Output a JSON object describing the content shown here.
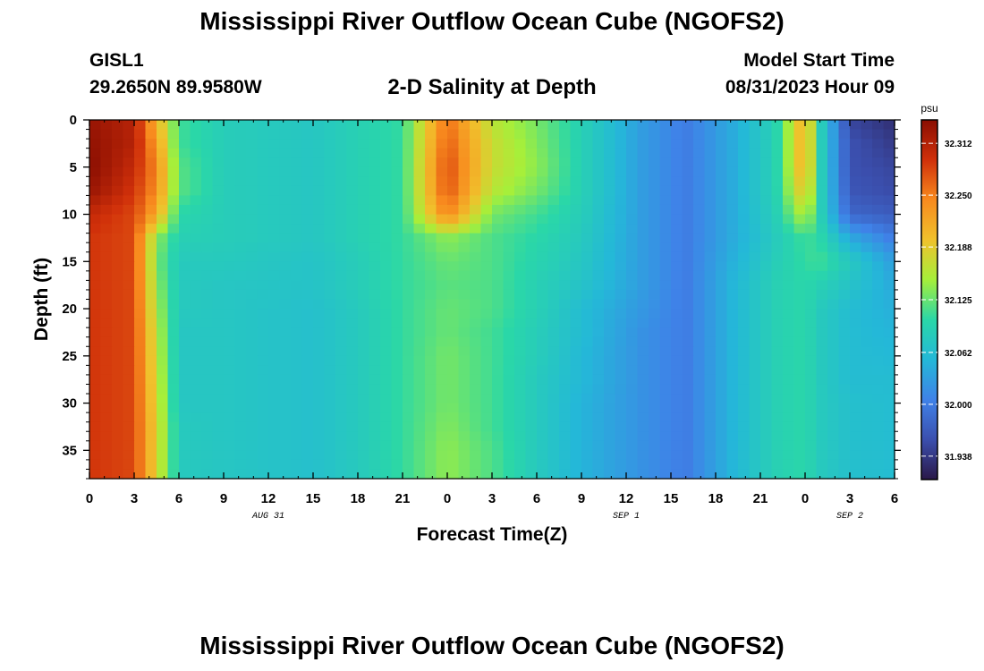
{
  "page": {
    "title": "Mississippi River Outflow Ocean Cube (NGOFS2)",
    "bottom_title": "Mississippi River Outflow Ocean Cube (NGOFS2)",
    "station": "GISL1",
    "coordinates": "29.2650N  89.9580W",
    "subtitle": "2-D Salinity at Depth",
    "model_start_label": "Model Start Time",
    "model_start_value": "08/31/2023 Hour 09"
  },
  "colors": {
    "scale": [
      "#2a1848",
      "#3b4fae",
      "#3f82e8",
      "#24b8d8",
      "#2ad7a8",
      "#a6ef3a",
      "#f0c12c",
      "#f88a1e",
      "#d0300a",
      "#8a0e02"
    ]
  },
  "chart_data": {
    "type": "heatmap",
    "xlabel": "Forecast Time(Z)",
    "ylabel": "Depth (ft)",
    "xlim": [
      0,
      54
    ],
    "ylim": [
      38,
      0
    ],
    "x_tick_values": [
      0,
      3,
      6,
      9,
      12,
      15,
      18,
      21,
      24,
      27,
      30,
      33,
      36,
      39,
      42,
      45,
      48,
      51,
      54
    ],
    "x_tick_labels": [
      "0",
      "3",
      "6",
      "9",
      "12",
      "15",
      "18",
      "21",
      "0",
      "3",
      "6",
      "9",
      "12",
      "15",
      "18",
      "21",
      "0",
      "3",
      "6"
    ],
    "date_labels": [
      {
        "x": 12,
        "text": "AUG 31"
      },
      {
        "x": 36,
        "text": "SEP 1"
      },
      {
        "x": 51,
        "text": "SEP 2"
      }
    ],
    "y_ticks": [
      0,
      5,
      10,
      15,
      20,
      25,
      30,
      35
    ],
    "colorbar": {
      "units": "psu",
      "min": 31.91,
      "max": 32.34,
      "tick_values": [
        32.312,
        32.25,
        32.188,
        32.125,
        32.062,
        32.0,
        31.938
      ],
      "tick_labels": [
        "32.312",
        "32.250",
        "32.188",
        "32.125",
        "32.062",
        "32.000",
        "31.938"
      ]
    },
    "times": [
      0,
      3,
      4.5,
      6,
      9,
      15,
      18,
      21,
      24,
      27,
      30,
      33,
      37,
      40,
      43,
      46,
      48,
      49,
      51,
      54
    ],
    "depths": [
      0,
      2.5,
      5,
      7.5,
      10,
      12.5,
      15,
      17.5,
      20,
      22.5,
      25,
      27.5,
      30,
      32.5,
      35,
      38
    ],
    "salinity": [
      [
        32.33,
        32.31,
        32.21,
        32.11,
        32.085,
        32.075,
        32.09,
        32.105,
        32.26,
        32.16,
        32.13,
        32.09,
        32.03,
        32.0,
        32.04,
        32.09,
        32.22,
        32.09,
        31.95,
        31.93
      ],
      [
        32.335,
        32.31,
        32.23,
        32.11,
        32.085,
        32.075,
        32.09,
        32.105,
        32.27,
        32.17,
        32.135,
        32.09,
        32.03,
        32.0,
        32.04,
        32.09,
        32.22,
        32.09,
        31.96,
        31.94
      ],
      [
        32.34,
        32.3,
        32.245,
        32.12,
        32.085,
        32.075,
        32.09,
        32.105,
        32.28,
        32.17,
        32.14,
        32.09,
        32.03,
        32.0,
        32.04,
        32.09,
        32.22,
        32.09,
        31.96,
        31.95
      ],
      [
        32.33,
        32.29,
        32.24,
        32.12,
        32.085,
        32.075,
        32.09,
        32.105,
        32.275,
        32.16,
        32.13,
        32.09,
        32.03,
        32.0,
        32.04,
        32.09,
        32.2,
        32.09,
        31.965,
        31.955
      ],
      [
        32.3,
        32.28,
        32.22,
        32.1,
        32.085,
        32.075,
        32.09,
        32.105,
        32.25,
        32.13,
        32.11,
        32.085,
        32.03,
        32.0,
        32.04,
        32.085,
        32.16,
        32.09,
        31.98,
        31.97
      ],
      [
        32.29,
        32.28,
        32.14,
        32.09,
        32.085,
        32.075,
        32.09,
        32.105,
        32.14,
        32.115,
        32.1,
        32.08,
        32.03,
        32.0,
        32.04,
        32.08,
        32.11,
        32.1,
        32.04,
        32.0
      ],
      [
        32.29,
        32.28,
        32.13,
        32.08,
        32.08,
        32.07,
        32.085,
        32.105,
        32.125,
        32.115,
        32.095,
        32.075,
        32.03,
        32.0,
        32.045,
        32.085,
        32.105,
        32.11,
        32.08,
        32.03
      ],
      [
        32.29,
        32.28,
        32.14,
        32.08,
        32.075,
        32.07,
        32.085,
        32.105,
        32.12,
        32.115,
        32.09,
        32.07,
        32.03,
        32.0,
        32.05,
        32.09,
        32.1,
        32.09,
        32.07,
        32.04
      ],
      [
        32.29,
        32.28,
        32.15,
        32.08,
        32.075,
        32.065,
        32.08,
        32.105,
        32.125,
        32.115,
        32.09,
        32.06,
        32.025,
        32.0,
        32.05,
        32.09,
        32.1,
        32.08,
        32.06,
        32.045
      ],
      [
        32.29,
        32.28,
        32.16,
        32.075,
        32.075,
        32.065,
        32.08,
        32.105,
        32.125,
        32.11,
        32.085,
        32.06,
        32.02,
        32.0,
        32.05,
        32.09,
        32.1,
        32.08,
        32.06,
        32.05
      ],
      [
        32.29,
        32.28,
        32.165,
        32.075,
        32.075,
        32.065,
        32.08,
        32.105,
        32.13,
        32.11,
        32.085,
        32.055,
        32.02,
        32.0,
        32.05,
        32.09,
        32.1,
        32.08,
        32.06,
        32.055
      ],
      [
        32.29,
        32.28,
        32.17,
        32.075,
        32.075,
        32.065,
        32.08,
        32.105,
        32.13,
        32.11,
        32.08,
        32.055,
        32.02,
        32.0,
        32.05,
        32.09,
        32.1,
        32.08,
        32.06,
        32.06
      ],
      [
        32.29,
        32.28,
        32.175,
        32.075,
        32.075,
        32.065,
        32.08,
        32.105,
        32.13,
        32.11,
        32.08,
        32.05,
        32.02,
        32.0,
        32.05,
        32.09,
        32.1,
        32.08,
        32.065,
        32.06
      ],
      [
        32.29,
        32.28,
        32.18,
        32.08,
        32.075,
        32.065,
        32.08,
        32.105,
        32.135,
        32.11,
        32.08,
        32.05,
        32.02,
        32.0,
        32.05,
        32.09,
        32.1,
        32.08,
        32.065,
        32.06
      ],
      [
        32.29,
        32.28,
        32.18,
        32.08,
        32.075,
        32.065,
        32.08,
        32.105,
        32.14,
        32.115,
        32.08,
        32.05,
        32.02,
        32.0,
        32.05,
        32.09,
        32.1,
        32.08,
        32.065,
        32.06
      ],
      [
        32.29,
        32.28,
        32.18,
        32.08,
        32.075,
        32.065,
        32.08,
        32.105,
        32.14,
        32.115,
        32.08,
        32.05,
        32.02,
        32.0,
        32.05,
        32.09,
        32.1,
        32.08,
        32.065,
        32.06
      ]
    ]
  }
}
